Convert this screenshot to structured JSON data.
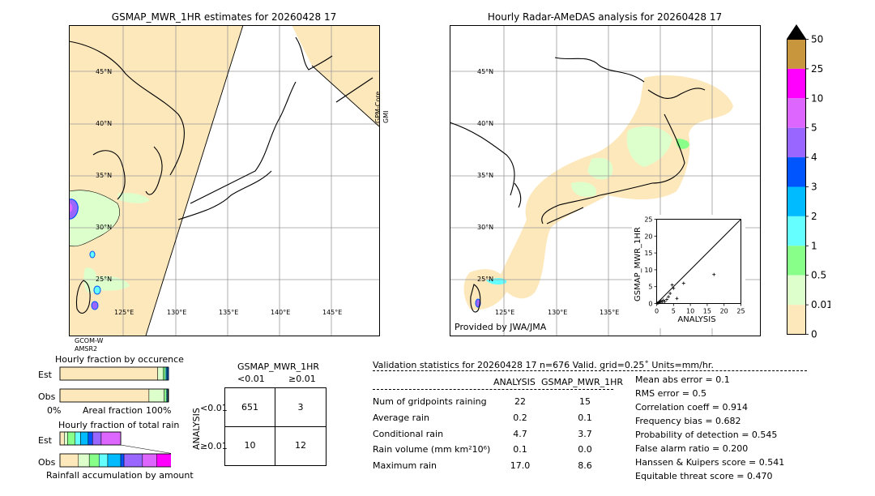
{
  "left_map": {
    "title": "GSMAP_MWR_1HR estimates for 20260428 17",
    "lat_labels": [
      "45°N",
      "40°N",
      "35°N",
      "30°N",
      "25°N"
    ],
    "lon_labels": [
      "125°E",
      "130°E",
      "135°E",
      "140°E",
      "145°E"
    ],
    "side_label_1": "GPM-Core",
    "side_label_2": "GMI",
    "bottom_label_1": "GCOM-W",
    "bottom_label_2": "AMSR2"
  },
  "right_map": {
    "title": "Hourly Radar-AMeDAS analysis for 20260428 17",
    "lat_labels": [
      "45°N",
      "40°N",
      "35°N",
      "30°N",
      "25°N"
    ],
    "lon_labels": [
      "125°E",
      "130°E",
      "135°E"
    ],
    "credit": "Provided by JWA/JMA"
  },
  "colorbar": {
    "labels": [
      "50",
      "25",
      "10",
      "5",
      "4",
      "3",
      "2",
      "1",
      "0.5",
      "0.01",
      "0"
    ],
    "colors": [
      "#c8963c",
      "#ff00ff",
      "#dd66ff",
      "#9966ff",
      "#0055ff",
      "#00bbff",
      "#66ffff",
      "#88ff88",
      "#ddffcc",
      "#fde8bc"
    ]
  },
  "colors": {
    "rain_light": "#fde8bc",
    "rain_green": "#ddffcc",
    "grid": "#9a9a9a"
  },
  "chart_data": [
    {
      "type": "scatter",
      "xlabel": "ANALYSIS",
      "ylabel": "GSMAP_MWR_1HR",
      "xlim": [
        0,
        25
      ],
      "ylim": [
        0,
        25
      ],
      "x_ticks": [
        "0",
        "5",
        "10",
        "15",
        "20",
        "25"
      ],
      "y_ticks": [
        "0",
        "5",
        "10",
        "15",
        "20",
        "25"
      ],
      "points": [
        {
          "x": 0.2,
          "y": 0.1
        },
        {
          "x": 0.5,
          "y": 0.2
        },
        {
          "x": 0.8,
          "y": 0.3
        },
        {
          "x": 1.0,
          "y": 0.5
        },
        {
          "x": 1.3,
          "y": 0.8
        },
        {
          "x": 1.6,
          "y": 0.4
        },
        {
          "x": 2.0,
          "y": 1.0
        },
        {
          "x": 2.4,
          "y": 0.6
        },
        {
          "x": 3.0,
          "y": 1.2
        },
        {
          "x": 3.5,
          "y": 2.0
        },
        {
          "x": 4.0,
          "y": 3.0
        },
        {
          "x": 4.6,
          "y": 5.5
        },
        {
          "x": 5.0,
          "y": 4.5
        },
        {
          "x": 6.0,
          "y": 1.5
        },
        {
          "x": 8.0,
          "y": 6.0
        },
        {
          "x": 17.0,
          "y": 8.6
        }
      ]
    },
    {
      "type": "bar",
      "title": "Hourly fraction by occurence",
      "categories": [
        "Est",
        "Obs"
      ],
      "xlabel": "Areal fraction",
      "x_min_label": "0%",
      "x_max_label": "100%",
      "series": [
        {
          "values": [
            0.9,
            0.82
          ],
          "color": "#fde8bc"
        },
        {
          "values": [
            0.05,
            0.14
          ],
          "color": "#ddffcc"
        },
        {
          "values": [
            0.02,
            0.02
          ],
          "color": "#88ff88"
        },
        {
          "values": [
            0.01,
            0.01
          ],
          "color": "#66ffff"
        },
        {
          "values": [
            0.01,
            0.005
          ],
          "color": "#00bbff"
        },
        {
          "values": [
            0.01,
            0.005
          ],
          "color": "#0055ff"
        }
      ]
    },
    {
      "type": "bar",
      "title": "Hourly fraction of total rain",
      "categories": [
        "Est",
        "Obs"
      ],
      "xlabel": "Rainfall accumulation by amount",
      "series": [
        {
          "values": [
            0.04,
            0.17
          ],
          "color": "#fde8bc"
        },
        {
          "values": [
            0.03,
            0.1
          ],
          "color": "#ddffcc"
        },
        {
          "values": [
            0.07,
            0.09
          ],
          "color": "#88ff88"
        },
        {
          "values": [
            0.05,
            0.08
          ],
          "color": "#66ffff"
        },
        {
          "values": [
            0.07,
            0.12
          ],
          "color": "#00bbff"
        },
        {
          "values": [
            0.04,
            0.03
          ],
          "color": "#0055ff"
        },
        {
          "values": [
            0.08,
            0.17
          ],
          "color": "#9966ff"
        },
        {
          "values": [
            0.18,
            0.13
          ],
          "color": "#dd66ff"
        },
        {
          "values": [
            0.0,
            0.16
          ],
          "color": "#ff00ff"
        }
      ]
    },
    {
      "type": "table",
      "title": "GSMAP_MWR_1HR",
      "col_headers": [
        "<0.01",
        "≥0.01"
      ],
      "row_axis_label": "ANALYSIS",
      "row_headers": [
        "<0.01",
        "≥0.01"
      ],
      "cells": [
        [
          "651",
          "3"
        ],
        [
          "10",
          "12"
        ]
      ]
    },
    {
      "type": "table",
      "title": "Validation statistics for 20260428 17  n=676 Valid. grid=0.25˚ Units=mm/hr.",
      "col_headers": [
        "ANALYSIS",
        "GSMAP_MWR_1HR"
      ],
      "rows": [
        {
          "label": "Num of gridpoints raining",
          "a": "22",
          "b": "15"
        },
        {
          "label": "Average rain",
          "a": "0.2",
          "b": "0.1"
        },
        {
          "label": "Conditional rain",
          "a": "4.7",
          "b": "3.7"
        },
        {
          "label": "Rain volume (mm km²10⁶)",
          "a": "0.1",
          "b": "0.0"
        },
        {
          "label": "Maximum rain",
          "a": "17.0",
          "b": "8.6"
        }
      ],
      "scores": [
        "Mean abs error =    0.1",
        "RMS error =    0.5",
        "Correlation coeff =  0.914",
        "Frequency bias =  0.682",
        "Probability of detection =  0.545",
        "False alarm ratio =  0.200",
        "Hanssen & Kuipers score =  0.541",
        "Equitable threat score =  0.470"
      ]
    }
  ]
}
